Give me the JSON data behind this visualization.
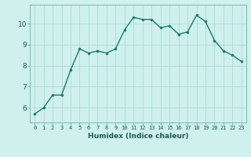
{
  "x": [
    0,
    1,
    2,
    3,
    4,
    5,
    6,
    7,
    8,
    9,
    10,
    11,
    12,
    13,
    14,
    15,
    16,
    17,
    18,
    19,
    20,
    21,
    22,
    23
  ],
  "y": [
    5.7,
    6.0,
    6.6,
    6.6,
    7.8,
    8.8,
    8.6,
    8.7,
    8.6,
    8.8,
    9.7,
    10.3,
    10.2,
    10.2,
    9.8,
    9.9,
    9.5,
    9.6,
    10.4,
    10.1,
    9.2,
    8.7,
    8.5,
    8.2
  ],
  "line_color": "#1a7a6e",
  "marker": "o",
  "marker_size": 2,
  "bg_color": "#cff0ec",
  "grid_color": "#aaddd8",
  "xlabel": "Humidex (Indice chaleur)",
  "xlim": [
    -0.5,
    23.5
  ],
  "ylim": [
    5.3,
    10.9
  ],
  "yticks": [
    6,
    7,
    8,
    9,
    10
  ],
  "xticks": [
    0,
    1,
    2,
    3,
    4,
    5,
    6,
    7,
    8,
    9,
    10,
    11,
    12,
    13,
    14,
    15,
    16,
    17,
    18,
    19,
    20,
    21,
    22,
    23
  ]
}
